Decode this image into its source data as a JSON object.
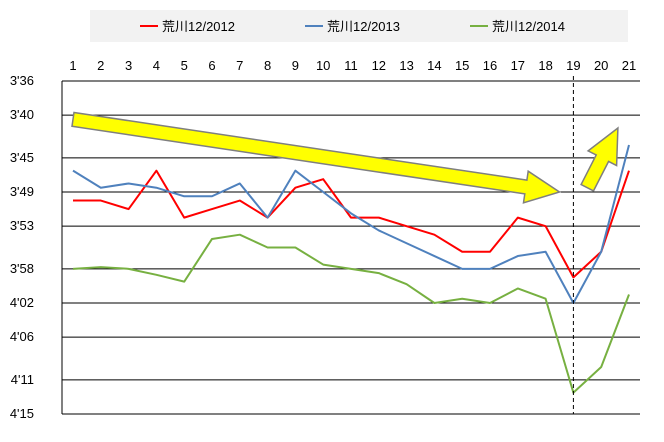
{
  "chart_data": {
    "type": "line",
    "x": [
      1,
      2,
      3,
      4,
      5,
      6,
      7,
      8,
      9,
      10,
      11,
      12,
      13,
      14,
      15,
      16,
      17,
      18,
      19,
      20,
      21
    ],
    "y_tick_labels": [
      "3'36",
      "3'40",
      "3'45",
      "3'49",
      "3'53",
      "3'58",
      "4'02",
      "4'06",
      "4'11",
      "4'15"
    ],
    "y_tick_values": [
      216,
      220,
      225,
      229,
      233,
      238,
      242,
      246,
      251,
      255
    ],
    "ylim": [
      216,
      255
    ],
    "y_inverted": true,
    "grid": "horizontal",
    "legend_position": "top",
    "marker_line_x": 19,
    "series": [
      {
        "name": "荒川12/2012",
        "color": "#ff0000",
        "values": [
          230.0,
          230.0,
          231.0,
          226.5,
          232.0,
          231.0,
          230.0,
          232.0,
          228.5,
          227.5,
          232.0,
          232.0,
          233.0,
          234.0,
          236.0,
          236.0,
          232.0,
          233.0,
          239.0,
          236.0,
          226.5
        ]
      },
      {
        "name": "荒川12/2013",
        "color": "#4f81bd",
        "values": [
          226.5,
          228.5,
          228.0,
          228.5,
          229.5,
          229.5,
          228.0,
          232.0,
          226.5,
          229.0,
          231.5,
          233.5,
          235.0,
          236.5,
          238.0,
          238.0,
          236.5,
          236.0,
          242.0,
          236.0,
          223.5
        ]
      },
      {
        "name": "荒川12/2014",
        "color": "#77b041",
        "values": [
          238.0,
          237.8,
          238.0,
          238.7,
          239.5,
          234.5,
          234.0,
          235.5,
          235.5,
          237.5,
          238.0,
          238.5,
          239.8,
          242.0,
          241.5,
          242.0,
          240.3,
          241.5,
          252.5,
          249.5,
          241.0
        ]
      }
    ],
    "arrows": [
      {
        "color": "#ffff00",
        "from": [
          1,
          220.5
        ],
        "to": [
          18.5,
          229.0
        ]
      },
      {
        "color": "#ffff00",
        "from": [
          19.5,
          228.5
        ],
        "to": [
          20.6,
          221.5
        ]
      }
    ]
  }
}
